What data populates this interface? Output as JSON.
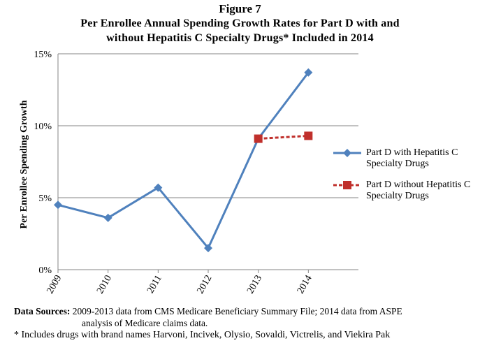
{
  "figure_label": "Figure 7",
  "title_line1": "Per Enrollee Annual Spending Growth Rates for Part D with and",
  "title_line2": "without Hepatitis C Specialty Drugs* Included in 2014",
  "colors": {
    "series1": "#4f81bd",
    "series2": "#c0302c",
    "grid": "#868686"
  },
  "icons": {
    "series1_marker": "diamond-icon",
    "series2_marker": "square-icon"
  },
  "chart_data": {
    "type": "line",
    "title": "Per Enrollee Annual Spending Growth Rates for Part D with and without Hepatitis C Specialty Drugs* Included in 2014",
    "xlabel": "",
    "ylabel": "Per Enrollee Spending Growth",
    "x": [
      "2009",
      "2010",
      "2011",
      "2012",
      "2013",
      "2014"
    ],
    "ylim": [
      0,
      15
    ],
    "yticks": [
      0,
      5,
      10,
      15
    ],
    "ytick_labels": [
      "0%",
      "5%",
      "10%",
      "15%"
    ],
    "grid": true,
    "legend_position": "right",
    "series": [
      {
        "name": "Part D with Hepatitis C Specialty Drugs",
        "x": [
          "2009",
          "2010",
          "2011",
          "2012",
          "2013",
          "2014"
        ],
        "values": [
          4.5,
          3.6,
          5.7,
          1.5,
          9.1,
          13.7
        ],
        "style": "solid",
        "marker": "diamond"
      },
      {
        "name": "Part D without Hepatitis C Specialty Drugs",
        "x": [
          "2013",
          "2014"
        ],
        "values": [
          9.1,
          9.3
        ],
        "style": "dashed",
        "marker": "square"
      }
    ]
  },
  "legend": {
    "series1_text": "Part D with Hepatitis C Specialty Drugs",
    "series2_text": "Part D without Hepatitis C Specialty Drugs"
  },
  "sources": {
    "lead": "Data Sources:",
    "text1": "2009-2013  data from CMS Medicare Beneficiary Summary File; 2014 data from ASPE",
    "text2": "analysis of Medicare claims data."
  },
  "footnote": "* Includes drugs with brand names Harvoni, Incivek, Olysio, Sovaldi, Victrelis, and Viekira Pak"
}
